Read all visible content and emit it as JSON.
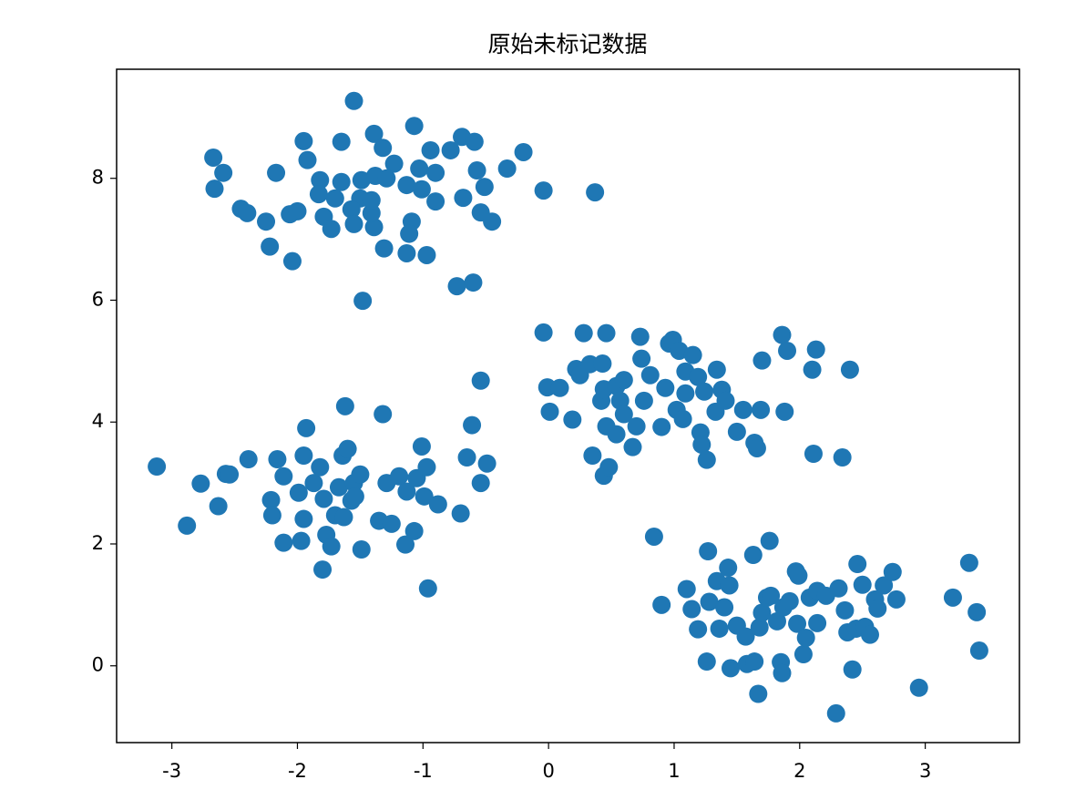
{
  "chart_data": {
    "type": "scatter",
    "title": "原始未标记数据",
    "color": "#1f77b4",
    "x": [
      -1.55,
      -2.67,
      -2.59,
      -2.66,
      -2.17,
      -1.95,
      -1.65,
      -1.92,
      -1.39,
      -1.32,
      -1.07,
      -0.94,
      -1.23,
      -1.03,
      -0.78,
      -0.69,
      -0.59,
      -0.2,
      -0.33,
      -0.57,
      -0.51,
      -0.04,
      0.37,
      -0.9,
      -0.9,
      -0.68,
      -0.54,
      -0.45,
      -1.82,
      -1.83,
      -1.65,
      -1.49,
      -1.38,
      -1.29,
      -1.13,
      -1.01,
      -1.5,
      -1.57,
      -1.79,
      -1.73,
      -1.55,
      -1.39,
      -1.41,
      -1.09,
      -1.11,
      -2.45,
      -2.4,
      -2.25,
      -2.06,
      -2.0,
      -2.22,
      -2.04,
      -1.31,
      -1.13,
      -0.97,
      -0.73,
      -0.6,
      -1.48,
      -1.7,
      -1.41,
      -3.12,
      -2.88,
      -2.77,
      -2.63,
      -2.57,
      -2.54,
      -2.39,
      -2.21,
      -2.2,
      -2.16,
      -2.11,
      -2.11,
      -1.99,
      -1.97,
      -1.93,
      -1.95,
      -1.95,
      -1.87,
      -1.82,
      -1.79,
      -1.8,
      -1.77,
      -1.73,
      -1.7,
      -1.67,
      -1.64,
      -1.62,
      -1.6,
      -1.57,
      -1.55,
      -1.63,
      -1.5,
      -1.49,
      -1.54,
      -1.32,
      -1.35,
      -1.25,
      -1.29,
      -1.19,
      -1.13,
      -1.14,
      -1.07,
      -1.05,
      -1.01,
      -0.99,
      -0.97,
      -0.96,
      -0.88,
      -0.7,
      -0.65,
      -0.61,
      -0.54,
      -0.49,
      -0.54,
      -0.04,
      -0.01,
      0.09,
      0.01,
      0.19,
      0.22,
      0.28,
      0.25,
      0.33,
      0.43,
      0.35,
      0.44,
      0.48,
      0.46,
      0.42,
      0.44,
      0.46,
      0.54,
      0.54,
      0.6,
      0.57,
      0.6,
      0.67,
      0.7,
      0.73,
      0.74,
      0.76,
      0.81,
      0.9,
      0.93,
      0.96,
      0.99,
      1.02,
      1.04,
      1.09,
      1.07,
      1.09,
      1.15,
      1.19,
      1.21,
      1.22,
      1.26,
      1.24,
      1.34,
      1.38,
      1.41,
      1.33,
      1.5,
      1.55,
      1.64,
      1.66,
      1.69,
      1.7,
      1.86,
      1.9,
      1.88,
      2.1,
      2.13,
      2.11,
      2.34,
      2.4,
      0.84,
      0.9,
      1.1,
      1.14,
      1.19,
      1.26,
      1.27,
      1.28,
      1.34,
      1.36,
      1.4,
      1.43,
      1.44,
      1.45,
      1.5,
      1.57,
      1.58,
      1.63,
      1.64,
      1.67,
      1.68,
      1.7,
      1.74,
      1.76,
      1.77,
      1.82,
      1.85,
      1.86,
      1.87,
      1.92,
      1.97,
      1.98,
      1.99,
      2.03,
      2.05,
      2.08,
      2.14,
      2.14,
      2.21,
      2.29,
      2.31,
      2.36,
      2.38,
      2.42,
      2.45,
      2.46,
      2.5,
      2.52,
      2.56,
      2.6,
      2.67,
      2.74,
      2.77,
      2.95,
      3.22,
      3.35,
      3.41,
      3.43,
      2.62
    ],
    "values": [
      9.27,
      8.34,
      8.09,
      7.83,
      8.09,
      8.61,
      8.6,
      8.3,
      8.73,
      8.5,
      8.86,
      8.46,
      8.24,
      8.16,
      8.46,
      8.68,
      8.6,
      8.43,
      8.16,
      8.13,
      7.86,
      7.8,
      7.77,
      8.09,
      7.62,
      7.68,
      7.44,
      7.29,
      7.97,
      7.74,
      7.94,
      7.97,
      8.04,
      8.0,
      7.89,
      7.82,
      7.67,
      7.49,
      7.37,
      7.17,
      7.25,
      7.2,
      7.43,
      7.29,
      7.09,
      7.5,
      7.43,
      7.29,
      7.41,
      7.46,
      6.88,
      6.64,
      6.85,
      6.77,
      6.74,
      6.23,
      6.29,
      5.99,
      7.67,
      7.64,
      3.27,
      2.3,
      2.99,
      2.62,
      3.15,
      3.14,
      3.39,
      2.72,
      2.47,
      3.39,
      2.02,
      3.11,
      2.84,
      2.05,
      3.9,
      3.45,
      2.41,
      3.0,
      3.26,
      2.74,
      1.58,
      2.15,
      1.96,
      2.47,
      2.93,
      3.45,
      4.26,
      3.56,
      2.71,
      3.0,
      2.44,
      3.14,
      1.91,
      2.78,
      4.13,
      2.38,
      2.33,
      3.0,
      3.11,
      2.86,
      1.99,
      2.21,
      3.08,
      3.6,
      2.78,
      3.26,
      1.27,
      2.65,
      2.5,
      3.42,
      3.95,
      4.68,
      3.32,
      3.0,
      5.47,
      4.57,
      4.56,
      4.17,
      4.04,
      4.87,
      5.46,
      4.77,
      4.95,
      4.96,
      3.45,
      3.12,
      3.26,
      5.46,
      4.35,
      4.54,
      3.93,
      3.8,
      4.59,
      4.69,
      4.35,
      4.13,
      3.59,
      3.93,
      5.4,
      5.04,
      4.35,
      4.77,
      3.92,
      4.56,
      5.29,
      5.35,
      4.2,
      5.17,
      4.47,
      4.05,
      4.83,
      5.1,
      4.74,
      3.83,
      3.63,
      3.38,
      4.5,
      4.86,
      4.53,
      4.35,
      4.17,
      3.84,
      4.2,
      3.66,
      3.57,
      4.2,
      5.01,
      5.43,
      5.17,
      4.17,
      4.86,
      5.19,
      3.48,
      3.42,
      4.86,
      2.12,
      1.0,
      1.26,
      0.93,
      0.6,
      0.07,
      1.88,
      1.05,
      1.39,
      0.61,
      0.96,
      1.61,
      1.32,
      -0.04,
      0.66,
      0.48,
      0.03,
      1.82,
      0.07,
      -0.46,
      0.63,
      0.87,
      1.12,
      2.05,
      1.15,
      0.73,
      0.06,
      -0.12,
      0.96,
      1.06,
      1.55,
      0.69,
      1.48,
      0.19,
      0.46,
      1.12,
      0.7,
      1.23,
      1.15,
      -0.78,
      1.27,
      0.91,
      0.55,
      -0.06,
      0.61,
      1.67,
      1.33,
      0.64,
      0.51,
      1.09,
      1.32,
      1.54,
      1.09,
      -0.36,
      1.12,
      1.69,
      0.88,
      0.25,
      0.94
    ],
    "xlim": [
      -3.44,
      3.75
    ],
    "ylim": [
      -1.26,
      9.79
    ],
    "xticks": [
      -3,
      -2,
      -1,
      0,
      1,
      2,
      3
    ],
    "yticks": [
      0,
      2,
      4,
      6,
      8
    ]
  }
}
